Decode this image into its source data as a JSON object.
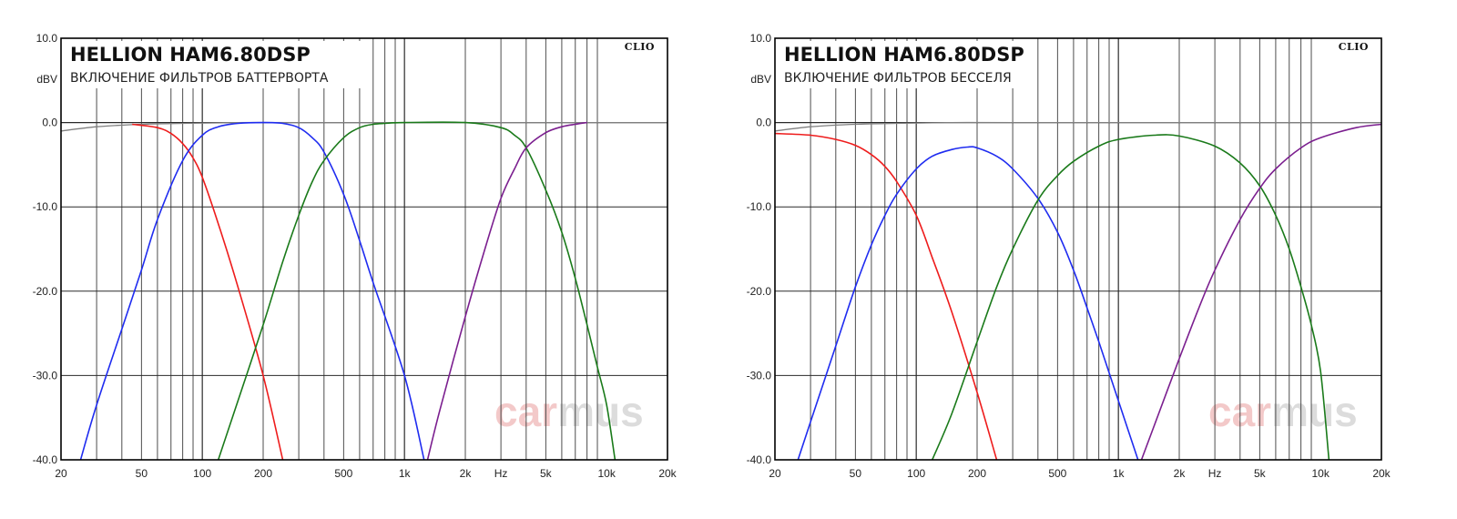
{
  "colors": {
    "red": "#ee1c1c",
    "blue": "#1f2cf0",
    "green": "#1a7a1a",
    "purple": "#7b1f8f",
    "gray_ref": "#808080",
    "grid_major": "#2a2a2a",
    "grid_minor": "#3a3a3a",
    "frame": "#000000"
  },
  "chart_data": [
    {
      "type": "line",
      "title": "HELLION HAM6.80DSP",
      "subtitle": "ВКЛЮЧЕНИЕ ФИЛЬТРОВ БАТТЕРВОРТА",
      "brand": "CLIO",
      "watermark": {
        "part1": "car",
        "part2": "mus"
      },
      "ylabel": "dBV",
      "xunit": "Hz",
      "xscale": "log",
      "xlim": [
        20,
        20000
      ],
      "ylim": [
        -40,
        10
      ],
      "y_ticks": [
        10,
        0,
        -10,
        -20,
        -30,
        -40
      ],
      "y_tick_labels": [
        "10.0",
        "0.0",
        "-10.0",
        "-20.0",
        "-30.0",
        "-40.0"
      ],
      "x_ticks": [
        20,
        50,
        100,
        200,
        500,
        1000,
        2000,
        5000,
        10000,
        20000
      ],
      "x_tick_labels": [
        "20",
        "50",
        "100",
        "200",
        "500",
        "1k",
        "2k",
        "5k",
        "10k",
        "20k"
      ],
      "grid": true,
      "series": [
        {
          "color": "gray_ref",
          "x": [
            20,
            30,
            50,
            80,
            150,
            300,
            1000,
            20000
          ],
          "y": [
            -1.0,
            -0.5,
            -0.2,
            -0.1,
            0,
            0,
            0,
            0
          ]
        },
        {
          "color": "red",
          "x": [
            45,
            60,
            70,
            80,
            90,
            100,
            120,
            150,
            200,
            250
          ],
          "y": [
            -0.2,
            -0.6,
            -1.3,
            -2.5,
            -4.2,
            -6.5,
            -12,
            -19.5,
            -30,
            -40
          ]
        },
        {
          "color": "blue",
          "x": [
            25,
            30,
            40,
            50,
            60,
            80,
            100,
            120,
            150,
            200,
            250,
            300,
            350,
            400,
            500,
            600,
            700,
            1000,
            1250
          ],
          "y": [
            -40,
            -33.5,
            -24.5,
            -17.5,
            -11.5,
            -4.5,
            -1.5,
            -0.5,
            -0.1,
            0,
            -0.1,
            -0.6,
            -1.8,
            -3.5,
            -8.5,
            -14,
            -19,
            -30,
            -40
          ]
        },
        {
          "color": "green",
          "x": [
            120,
            150,
            200,
            250,
            300,
            350,
            400,
            500,
            600,
            700,
            800,
            1000,
            2000,
            3000,
            3500,
            4000,
            5000,
            6000,
            7000,
            8000,
            9000,
            10000,
            11000
          ],
          "y": [
            -40,
            -33,
            -24,
            -16.5,
            -11,
            -7,
            -4.5,
            -1.8,
            -0.6,
            -0.2,
            -0.1,
            0,
            0,
            -0.6,
            -1.5,
            -3,
            -8,
            -13,
            -18.5,
            -24,
            -29,
            -33.5,
            -40
          ]
        },
        {
          "color": "purple",
          "x": [
            1300,
            1500,
            2000,
            2500,
            3000,
            3500,
            4000,
            5000,
            6000,
            7000,
            8000
          ],
          "y": [
            -40,
            -34,
            -23,
            -15,
            -9,
            -5.5,
            -3,
            -1.2,
            -0.5,
            -0.2,
            0
          ]
        }
      ]
    },
    {
      "type": "line",
      "title": "HELLION HAM6.80DSP",
      "subtitle": "ВКЛЮЧЕНИЕ ФИЛЬТРОВ БЕССЕЛЯ",
      "brand": "CLIO",
      "watermark": {
        "part1": "car",
        "part2": "mus"
      },
      "ylabel": "dBV",
      "xunit": "Hz",
      "xscale": "log",
      "xlim": [
        20,
        20000
      ],
      "ylim": [
        -40,
        10
      ],
      "y_ticks": [
        10,
        0,
        -10,
        -20,
        -30,
        -40
      ],
      "y_tick_labels": [
        "10.0",
        "0.0",
        "-10.0",
        "-20.0",
        "-30.0",
        "-40.0"
      ],
      "x_ticks": [
        20,
        50,
        100,
        200,
        500,
        1000,
        2000,
        5000,
        10000,
        20000
      ],
      "x_tick_labels": [
        "20",
        "50",
        "100",
        "200",
        "500",
        "1k",
        "2k",
        "5k",
        "10k",
        "20k"
      ],
      "grid": true,
      "series": [
        {
          "color": "gray_ref",
          "x": [
            20,
            30,
            50,
            80,
            150,
            300,
            1000,
            20000
          ],
          "y": [
            -1.0,
            -0.5,
            -0.2,
            -0.1,
            0,
            0,
            0,
            0
          ]
        },
        {
          "color": "red",
          "x": [
            20,
            30,
            40,
            50,
            60,
            70,
            80,
            100,
            120,
            150,
            200,
            250
          ],
          "y": [
            -1.3,
            -1.5,
            -2.0,
            -2.7,
            -3.8,
            -5.2,
            -7,
            -11,
            -16,
            -22.5,
            -32,
            -40
          ]
        },
        {
          "color": "blue",
          "x": [
            26,
            30,
            40,
            50,
            60,
            70,
            80,
            100,
            120,
            150,
            180,
            200,
            250,
            300,
            400,
            500,
            600,
            700,
            800,
            1000,
            1250
          ],
          "y": [
            -40,
            -35.5,
            -26.5,
            -19.5,
            -14.5,
            -11,
            -8.5,
            -5.5,
            -4,
            -3.2,
            -2.9,
            -3,
            -4,
            -5.5,
            -9,
            -13,
            -17.5,
            -22,
            -26,
            -33,
            -40
          ]
        },
        {
          "color": "green",
          "x": [
            120,
            150,
            200,
            250,
            300,
            400,
            500,
            600,
            800,
            1000,
            1500,
            2000,
            3000,
            4000,
            5000,
            6000,
            7000,
            8000,
            9000,
            10000,
            11000
          ],
          "y": [
            -40,
            -34.5,
            -26,
            -19.5,
            -15,
            -9.2,
            -6.3,
            -4.6,
            -2.8,
            -2.0,
            -1.5,
            -1.6,
            -2.8,
            -4.8,
            -7.5,
            -11,
            -15,
            -19.5,
            -24,
            -29.5,
            -40
          ]
        },
        {
          "color": "purple",
          "x": [
            1300,
            1500,
            2000,
            2500,
            3000,
            4000,
            5000,
            6000,
            8000,
            10000,
            15000,
            20000
          ],
          "y": [
            -40,
            -36,
            -28,
            -22,
            -17.5,
            -11.5,
            -7.8,
            -5.5,
            -3.0,
            -1.8,
            -0.6,
            -0.2
          ]
        }
      ]
    }
  ]
}
